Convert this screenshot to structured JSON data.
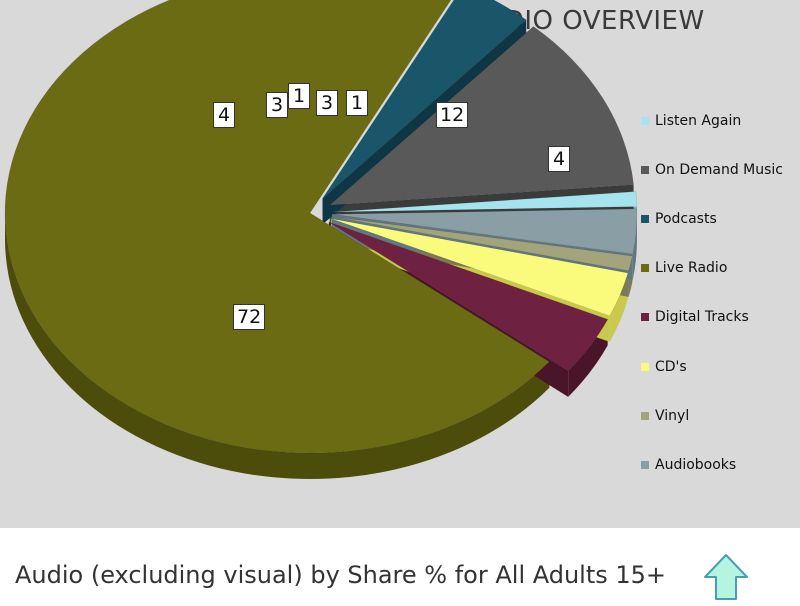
{
  "chart_data": {
    "type": "pie",
    "style": "3d-exploded",
    "title": "AUDIO OVERVIEW",
    "legend_position": "right",
    "slices": [
      {
        "name": "Listen Again",
        "value": 1,
        "label": "1",
        "color": "#a5e3ef",
        "side": "#6fb0bc"
      },
      {
        "name": "On Demand Music",
        "value": 12,
        "label": "12",
        "color": "#595959",
        "side": "#3b3b3b"
      },
      {
        "name": "Podcasts",
        "value": 4,
        "label": "4",
        "color": "#19566a",
        "side": "#0e3644"
      },
      {
        "name": "Live Radio",
        "value": 72,
        "label": "72",
        "color": "#6b6b14",
        "side": "#4c4c0b"
      },
      {
        "name": "Digital Tracks",
        "value": 4,
        "label": "4",
        "color": "#6e2140",
        "side": "#4a1429"
      },
      {
        "name": "CD's",
        "value": 3,
        "label": "3",
        "color": "#fafa7c",
        "side": "#c9c94e"
      },
      {
        "name": "Vinyl",
        "value": 1,
        "label": "1",
        "color": "#a3a37c",
        "side": "#7a7a55"
      },
      {
        "name": "Audiobooks",
        "value": 3,
        "label": "3",
        "color": "#8a9ea6",
        "side": "#627780"
      }
    ]
  },
  "caption": "Audio (excluding visual) by Share % for All Adults 15+",
  "nav": {
    "up_icon": "up-arrow-icon",
    "up_color": "#b3f5e1"
  }
}
